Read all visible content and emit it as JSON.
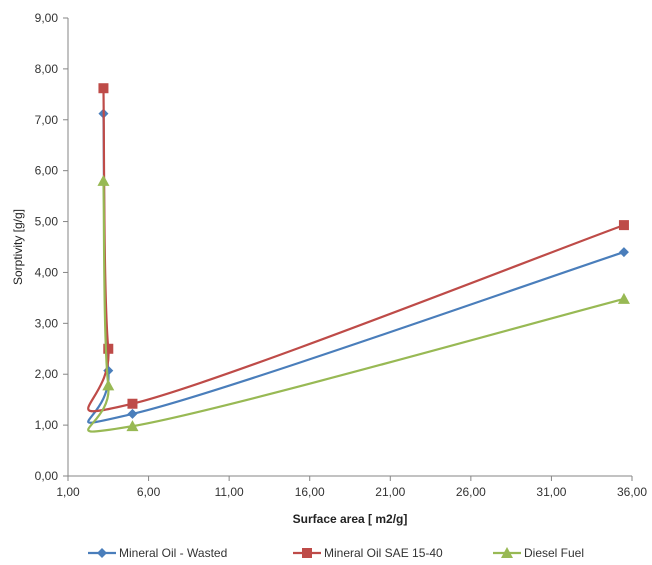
{
  "chart_data": {
    "type": "line",
    "xlabel": "Surface area [ m2/g]",
    "ylabel": "Sorptivity  [g/g]",
    "xlim": [
      1,
      36
    ],
    "ylim": [
      0,
      9
    ],
    "x_ticks": [
      "1,00",
      "6,00",
      "11,00",
      "16,00",
      "21,00",
      "26,00",
      "31,00",
      "36,00"
    ],
    "y_ticks": [
      "0,00",
      "1,00",
      "2,00",
      "3,00",
      "4,00",
      "5,00",
      "6,00",
      "7,00",
      "8,00",
      "9,00"
    ],
    "grid": false,
    "legend_position": "bottom",
    "series": [
      {
        "name": "Mineral Oil - Wasted",
        "color": "#4a7ebb",
        "marker": "diamond",
        "points": [
          [
            3.2,
            7.12
          ],
          [
            3.5,
            2.07
          ],
          [
            5.0,
            1.22
          ],
          [
            35.5,
            4.4
          ]
        ]
      },
      {
        "name": "Mineral Oil SAE 15-40",
        "color": "#be4b48",
        "marker": "square",
        "points": [
          [
            3.2,
            7.62
          ],
          [
            3.5,
            2.5
          ],
          [
            5.0,
            1.42
          ],
          [
            35.5,
            4.93
          ]
        ]
      },
      {
        "name": "Diesel Fuel",
        "color": "#98b954",
        "marker": "triangle",
        "points": [
          [
            3.2,
            5.8
          ],
          [
            3.5,
            1.78
          ],
          [
            5.0,
            0.98
          ],
          [
            35.5,
            3.48
          ]
        ]
      }
    ]
  }
}
